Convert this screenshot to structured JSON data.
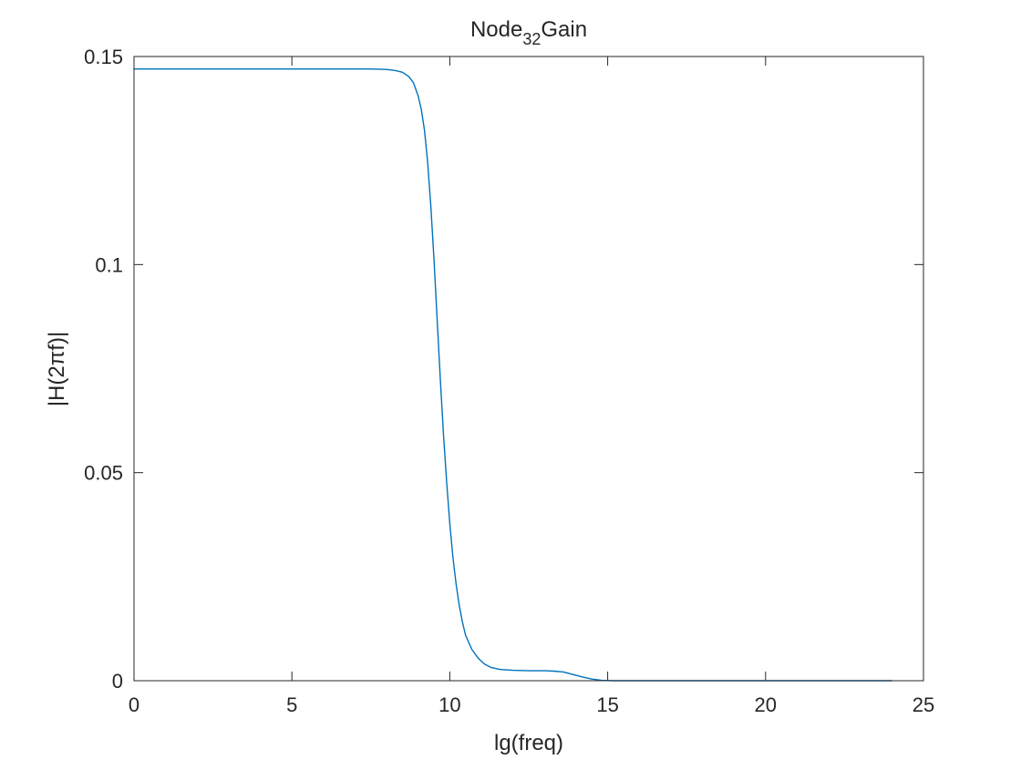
{
  "chart_data": {
    "type": "line",
    "title": {
      "main": "Node",
      "subscript": "32",
      "suffix": "Gain"
    },
    "xlabel": "lg(freq)",
    "ylabel": "|H(2πf)|",
    "xlim": [
      0,
      25
    ],
    "ylim": [
      0,
      0.15
    ],
    "xticks": [
      0,
      5,
      10,
      15,
      20,
      25
    ],
    "xtick_labels": [
      "0",
      "5",
      "10",
      "15",
      "20",
      "25"
    ],
    "yticks": [
      0,
      0.05,
      0.1,
      0.15
    ],
    "ytick_labels": [
      "0",
      "0.05",
      "0.1",
      "0.15"
    ],
    "grid": false,
    "box": true,
    "series": [
      {
        "color": "#0072bd",
        "x": [
          0,
          2,
          4,
          6,
          7,
          7.5,
          8,
          8.3,
          8.5,
          8.7,
          8.85,
          9.0,
          9.1,
          9.2,
          9.3,
          9.4,
          9.5,
          9.6,
          9.7,
          9.8,
          9.9,
          10.0,
          10.1,
          10.2,
          10.3,
          10.4,
          10.5,
          10.7,
          10.9,
          11.1,
          11.3,
          11.6,
          12.0,
          12.5,
          13.0,
          13.3,
          13.6,
          13.9,
          14.2,
          14.5,
          14.8,
          15.2,
          16,
          18,
          20,
          22,
          24
        ],
        "y": [
          0.147,
          0.147,
          0.147,
          0.147,
          0.147,
          0.147,
          0.1469,
          0.1466,
          0.1462,
          0.1452,
          0.1437,
          0.1405,
          0.1372,
          0.1322,
          0.1245,
          0.114,
          0.1012,
          0.0868,
          0.0725,
          0.0592,
          0.0478,
          0.0378,
          0.0296,
          0.0232,
          0.0181,
          0.0141,
          0.0109,
          0.0075,
          0.0054,
          0.004,
          0.0032,
          0.0027,
          0.0025,
          0.0024,
          0.0024,
          0.0023,
          0.0021,
          0.0015,
          0.0009,
          0.0004,
          0.0001,
          0.0,
          0.0,
          0.0,
          0.0,
          0.0,
          0.0
        ]
      }
    ]
  }
}
